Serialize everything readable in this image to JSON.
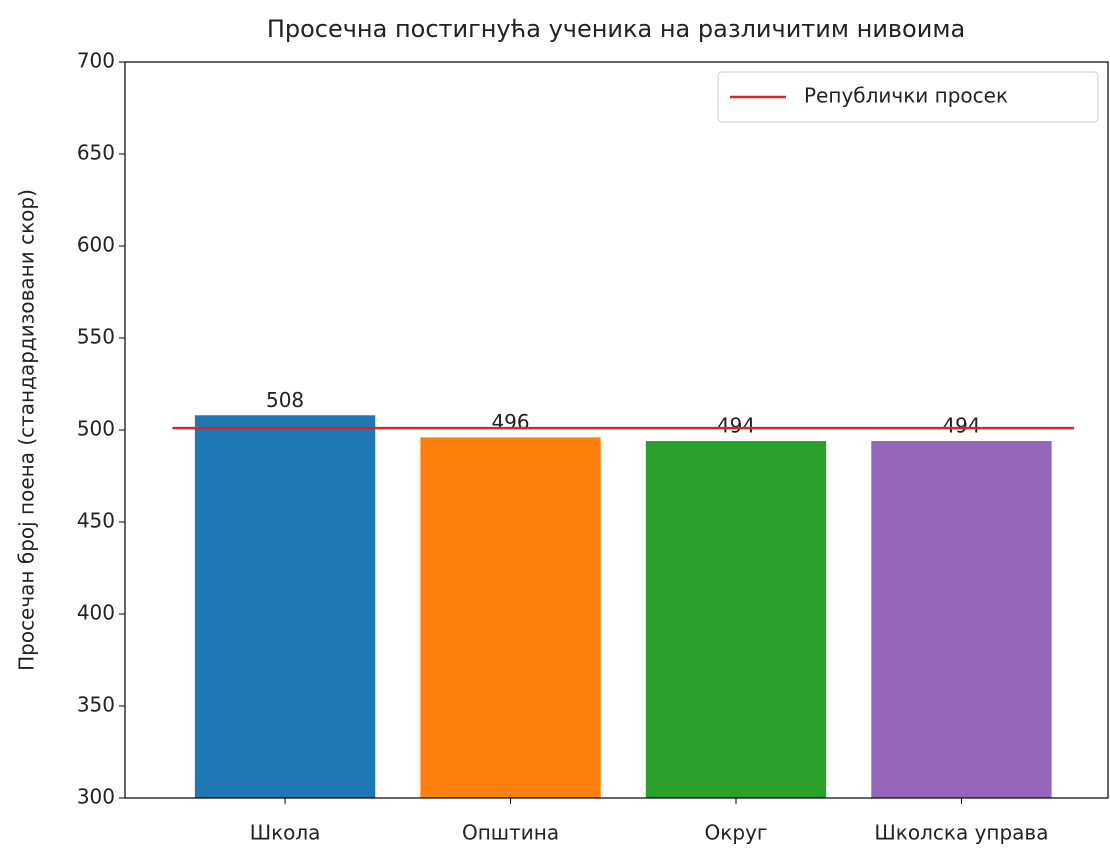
{
  "chart_data": {
    "type": "bar",
    "title": "Просечна постигнућа ученика на различитим нивоима",
    "ylabel": "Просечан број поена (стандардизовани скор)",
    "categories": [
      "Школа",
      "Општина",
      "Округ",
      "Школска управа"
    ],
    "values": [
      508,
      496,
      494,
      494
    ],
    "colors": [
      "#1f77b4",
      "#ff7f0e",
      "#2ca02c",
      "#9467bd"
    ],
    "reference_line": {
      "name": "Републички просек",
      "value": 501,
      "color": "#d62728"
    },
    "ylim": [
      300,
      700
    ],
    "yticks": [
      300,
      350,
      400,
      450,
      500,
      550,
      600,
      650,
      700
    ],
    "legend": "upper right",
    "grid": false
  }
}
